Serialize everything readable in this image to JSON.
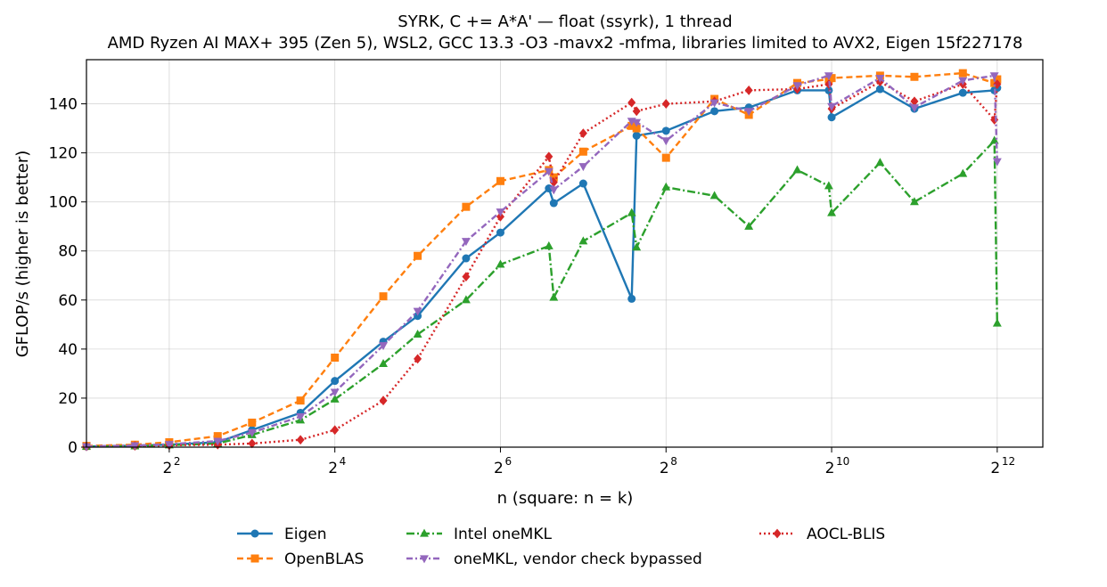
{
  "chart_data": {
    "type": "line",
    "title": "SYRK, C += A*A' — float (ssyrk), 1 thread",
    "subtitle": "AMD Ryzen AI MAX+ 395 (Zen 5), WSL2, GCC 13.3 -O3 -mavx2 -mfma, libraries limited to AVX2, Eigen 15f227178",
    "xlabel": "n (square: n = k)",
    "ylabel": "GFLOP/s (higher is better)",
    "x_scale": "log2",
    "xlim": [
      2,
      6000
    ],
    "ylim": [
      0,
      158
    ],
    "x_ticks": [
      {
        "base": "2",
        "exp": "2",
        "value": 4
      },
      {
        "base": "2",
        "exp": "4",
        "value": 16
      },
      {
        "base": "2",
        "exp": "6",
        "value": 64
      },
      {
        "base": "2",
        "exp": "8",
        "value": 256
      },
      {
        "base": "2",
        "exp": "10",
        "value": 1024
      },
      {
        "base": "2",
        "exp": "12",
        "value": 4096
      }
    ],
    "y_ticks": [
      "0",
      "20",
      "40",
      "60",
      "80",
      "100",
      "120",
      "140"
    ],
    "grid": true,
    "legend_position": "bottom",
    "x": [
      2,
      3,
      4,
      6,
      8,
      12,
      16,
      24,
      32,
      48,
      64,
      96,
      100,
      128,
      192,
      200,
      256,
      384,
      512,
      768,
      1000,
      1024,
      1536,
      2048,
      3072,
      4000,
      4096
    ],
    "series": [
      {
        "name": "Eigen",
        "color": "#1f77b4",
        "dash": "",
        "marker": "circle",
        "values": [
          0.3,
          0.6,
          1.0,
          2.0,
          7.0,
          14.0,
          27.0,
          43.0,
          53.5,
          77.0,
          87.5,
          105.5,
          99.5,
          107.5,
          60.5,
          127.0,
          129.0,
          137.0,
          138.5,
          145.5,
          145.5,
          134.5,
          146.0,
          138.0,
          144.5,
          145.5,
          146.5
        ]
      },
      {
        "name": "OpenBLAS",
        "color": "#ff7f0e",
        "dash": "7,4",
        "marker": "square",
        "values": [
          0.5,
          1.0,
          2.0,
          4.5,
          10.0,
          19.0,
          36.5,
          61.5,
          78.0,
          98.0,
          108.5,
          113.0,
          110.0,
          120.5,
          131.0,
          130.0,
          118.0,
          142.0,
          135.5,
          148.5,
          150.0,
          150.5,
          151.5,
          151.0,
          152.5,
          148.5,
          150.0
        ]
      },
      {
        "name": "Intel oneMKL",
        "color": "#2ca02c",
        "dash": "9,3,2,3",
        "marker": "triangle-up",
        "values": [
          0.2,
          0.4,
          0.8,
          1.5,
          5.0,
          11.0,
          19.5,
          34.0,
          46.0,
          60.0,
          74.5,
          82.0,
          61.0,
          84.0,
          95.5,
          81.5,
          106.0,
          102.5,
          90.0,
          113.0,
          106.5,
          95.5,
          116.0,
          100.0,
          111.5,
          125.0,
          50.5
        ]
      },
      {
        "name": "AOCL-BLIS",
        "color": "#d62728",
        "dash": "2,3",
        "marker": "diamond",
        "values": [
          0.3,
          0.5,
          0.8,
          1.0,
          1.5,
          3.0,
          7.0,
          19.0,
          36.0,
          69.5,
          94.0,
          118.5,
          108.0,
          128.0,
          140.5,
          137.0,
          140.0,
          141.0,
          145.5,
          146.0,
          148.0,
          138.0,
          149.0,
          141.0,
          148.0,
          133.5,
          148.0
        ]
      },
      {
        "name": "oneMKL, vendor check bypassed",
        "color": "#9467bd",
        "dash": "7,3,2,3",
        "marker": "triangle-down",
        "values": [
          0.3,
          0.7,
          1.2,
          2.5,
          6.0,
          12.5,
          22.5,
          41.5,
          55.5,
          84.0,
          96.0,
          112.5,
          105.0,
          114.5,
          133.0,
          132.5,
          125.0,
          140.5,
          137.0,
          147.5,
          151.5,
          139.0,
          150.5,
          138.5,
          149.5,
          151.5,
          116.5
        ]
      }
    ],
    "legend_layout": [
      [
        "Eigen",
        "OpenBLAS"
      ],
      [
        "Intel oneMKL",
        "oneMKL, vendor check bypassed"
      ],
      [
        "AOCL-BLIS"
      ]
    ]
  }
}
